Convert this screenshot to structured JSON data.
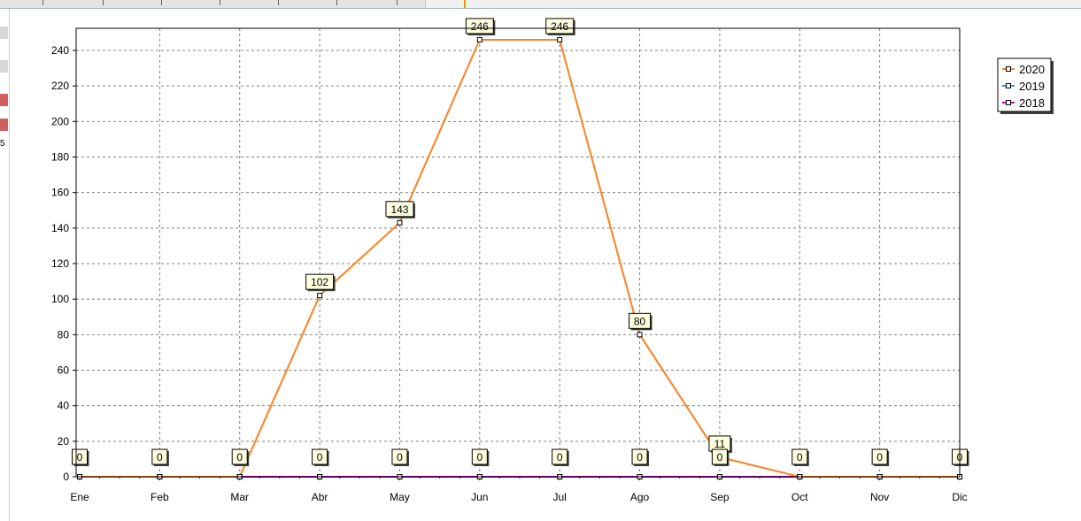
{
  "left_strip": {
    "partial_value": "5"
  },
  "chart_data": {
    "type": "line",
    "categories": [
      "Ene",
      "Feb",
      "Mar",
      "Abr",
      "May",
      "Jun",
      "Jul",
      "Ago",
      "Sep",
      "Oct",
      "Nov",
      "Dic"
    ],
    "ylim": [
      0,
      250
    ],
    "yticks": [
      0,
      20,
      40,
      60,
      80,
      100,
      120,
      140,
      160,
      180,
      200,
      220,
      240
    ],
    "grid": true,
    "legend_position": "top-right",
    "series": [
      {
        "name": "2020",
        "color": "#ff8020",
        "values": [
          0,
          0,
          0,
          102,
          143,
          246,
          246,
          80,
          11,
          0,
          0,
          0
        ]
      },
      {
        "name": "2019",
        "color": "#20a0c0",
        "values": [
          0,
          0,
          0,
          0,
          0,
          0,
          0,
          0,
          0,
          0,
          0,
          0
        ]
      },
      {
        "name": "2018",
        "color": "#c000c0",
        "values": [
          0,
          0,
          0,
          0,
          0,
          0,
          0,
          0,
          0,
          0,
          0,
          0
        ]
      }
    ],
    "data_labels": {
      "2020": [
        "",
        "",
        "",
        "102",
        "143",
        "246",
        "246",
        "80",
        "11",
        "",
        "",
        ""
      ],
      "2018": [
        "0",
        "0",
        "0",
        "0",
        "0",
        "0",
        "0",
        "0",
        "0",
        "0",
        "0",
        "0"
      ]
    }
  }
}
